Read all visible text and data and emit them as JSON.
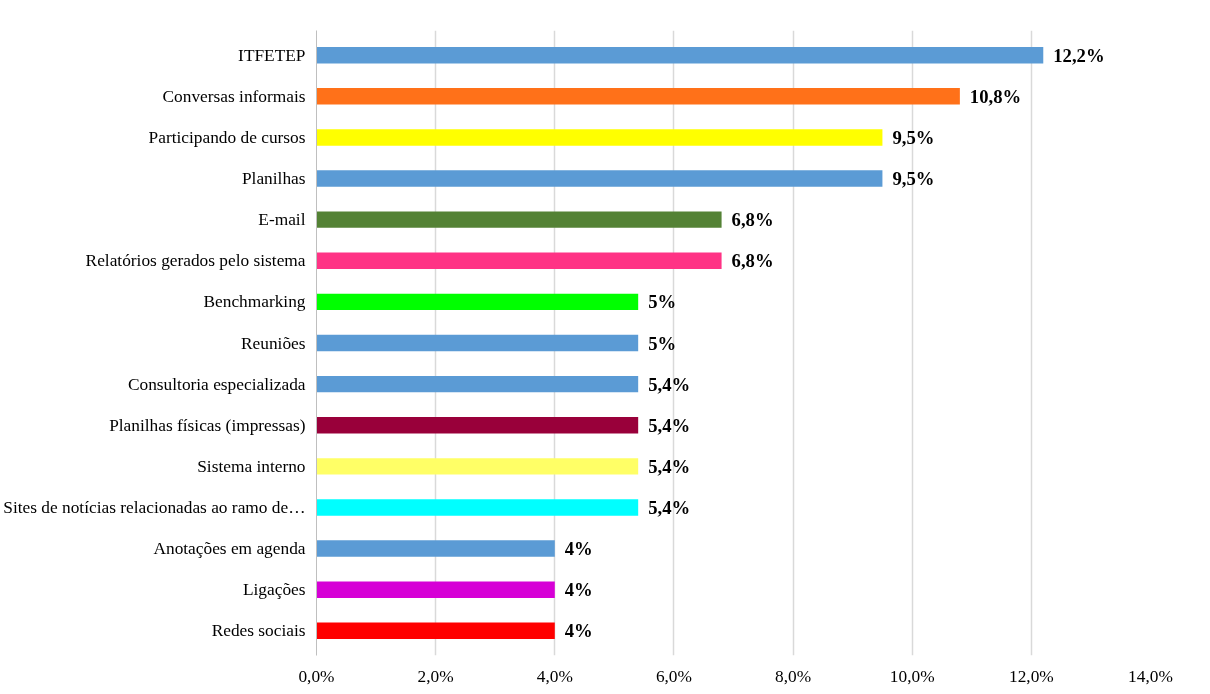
{
  "chart_data": {
    "type": "bar",
    "orientation": "horizontal",
    "categories": [
      "ITFETEP",
      "Conversas informais",
      "Participando de cursos",
      "Planilhas",
      "E-mail",
      "Relatórios gerados pelo sistema",
      "Benchmarking",
      "Reuniões",
      "Consultoria especializada",
      "Planilhas físicas (impressas)",
      "Sistema interno",
      "Sites de notícias relacionadas ao ramo de…",
      "Anotações em agenda",
      "Ligações",
      "Redes sociais"
    ],
    "values": [
      12.2,
      10.8,
      9.5,
      9.5,
      6.8,
      6.8,
      5.4,
      5.4,
      5.4,
      5.4,
      5.4,
      5.4,
      4,
      4,
      4
    ],
    "value_labels": [
      "12,2%",
      "10,8%",
      "9,5%",
      "9,5%",
      "6,8%",
      "6,8%",
      "5%",
      "5%",
      "5,4%",
      "5,4%",
      "5,4%",
      "5,4%",
      "4%",
      "4%",
      "4%"
    ],
    "colors": [
      "#5b9bd5",
      "#ff7119",
      "#ffff00",
      "#5b9bd5",
      "#548235",
      "#ff3385",
      "#00ff00",
      "#5b9bd5",
      "#5b9bd5",
      "#99003a",
      "#ffff66",
      "#00ffff",
      "#5b9bd5",
      "#d600d6",
      "#ff0000"
    ],
    "xlim": [
      0,
      14
    ],
    "xticks": [
      {
        "value": 0,
        "label": "0,0%"
      },
      {
        "value": 2,
        "label": "2,0%"
      },
      {
        "value": 4,
        "label": "4,0%"
      },
      {
        "value": 6,
        "label": "6,0%"
      },
      {
        "value": 8,
        "label": "8,0%"
      },
      {
        "value": 10,
        "label": "10,0%"
      },
      {
        "value": 12,
        "label": "12,0%"
      },
      {
        "value": 14,
        "label": "14,0%"
      }
    ],
    "grid": "x"
  }
}
